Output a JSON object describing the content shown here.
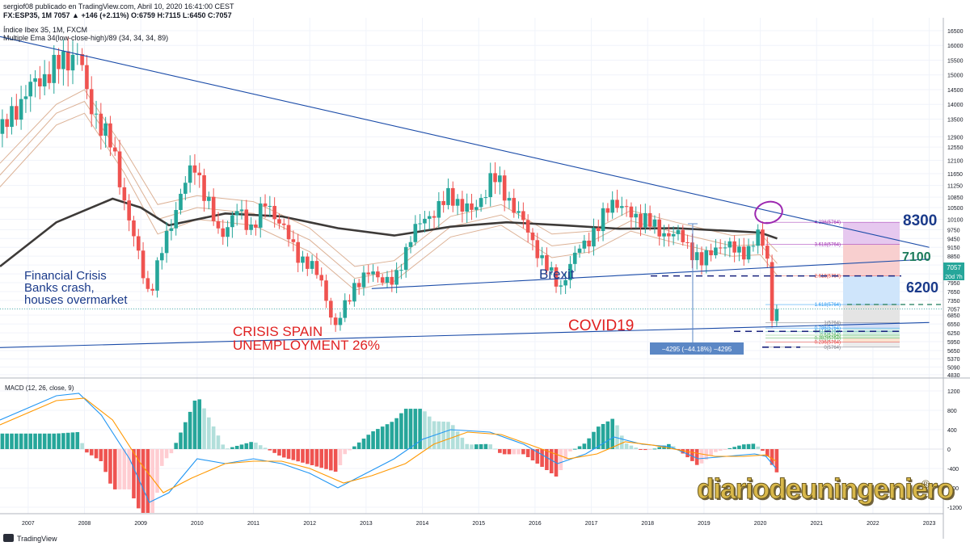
{
  "header": {
    "published": "sergiof08 publicado en TradingView.com, Abril 10, 2020 16:41:00 CEST",
    "symbol_line": "FX:ESP35, 1M 7057 ▲ +146 (+2.11%) O:6759 H:7115 L:6450 C:7057",
    "instrument": "Índice Ibex 35, 1M, FXCM",
    "indicator": "Multiple Ema 34(low-close-high)/89 (34, 34, 34, 89)"
  },
  "macd_label": "MACD (12, 26, close, 9)",
  "footer_logo": "TradingView",
  "watermark": "diariodeuningeniero",
  "watermark_mark": "®",
  "colors": {
    "up": "#26a69a",
    "down": "#ef5350",
    "trendline": "#1a4ba8",
    "ema89": "#3d3a38",
    "ema34": "#d8a88a",
    "macd_line": "#2196f3",
    "signal_line": "#ff9800",
    "navy_label": "#1a3a8a",
    "green_label": "#1a7a5a",
    "red_label": "#e02020",
    "purple_circle": "#9c27b0"
  },
  "annotations": {
    "financial_crisis": [
      "Financial Crisis",
      "Banks crash,",
      "houses overmarket"
    ],
    "crisis_spain": [
      "CRISIS SPAIN",
      "UNEMPLOYMENT 26%"
    ],
    "brexit": "Brexit",
    "covid": "COVID19",
    "level_8300": "8300",
    "level_7100": "7100",
    "level_6200": "6200",
    "measure": "−4295 (−44.18%) −4295"
  },
  "price_tags": {
    "current": "7057",
    "countdown": "20d 7h"
  },
  "fib_levels": [
    {
      "label": "4.236(5764)",
      "value": 10000
    },
    {
      "label": "3.618(5764)",
      "value": 9250
    },
    {
      "label": "2.618(5764)",
      "value": 8180
    },
    {
      "label": "1.618(5764)",
      "value": 7210
    },
    {
      "label": "1(5764)",
      "value": 6600
    },
    {
      "label": "0.786(5764)",
      "value": 6410
    },
    {
      "label": "0.618(5764)",
      "value": 6300
    },
    {
      "label": "0.5(5764)",
      "value": 6170
    },
    {
      "label": "0.382(5764)",
      "value": 6070
    },
    {
      "label": "0.236(5764)",
      "value": 5940
    },
    {
      "label": "0(5764)",
      "value": 5764
    }
  ],
  "chart_data": {
    "type": "candlestick",
    "price_axis": {
      "ticks": [
        16500,
        16000,
        15500,
        15000,
        14500,
        14000,
        13500,
        12900,
        12550,
        12100,
        11650,
        11250,
        10850,
        10500,
        10100,
        9750,
        9450,
        9150,
        8850,
        8550,
        8250,
        7950,
        7650,
        7350,
        7057,
        6850,
        6550,
        6250,
        5950,
        5650,
        5370,
        5090,
        4830
      ],
      "range": [
        4800,
        16800
      ]
    },
    "macd_axis": {
      "ticks": [
        1200,
        800,
        400,
        0,
        -400,
        -800,
        -1200
      ],
      "range": [
        -1400,
        1400
      ]
    },
    "x_axis": {
      "ticks": [
        "2007",
        "2008",
        "2009",
        "2010",
        "2011",
        "2012",
        "2013",
        "2014",
        "2015",
        "2016",
        "2017",
        "2018",
        "2019",
        "2020",
        "2021",
        "2022",
        "2023"
      ],
      "start_year": 2006.5
    },
    "anchors": [
      [
        2006.5,
        13000
      ],
      [
        2007.0,
        14500
      ],
      [
        2007.5,
        15300
      ],
      [
        2007.9,
        15800
      ],
      [
        2008.05,
        14200
      ],
      [
        2008.5,
        12500
      ],
      [
        2008.8,
        10000
      ],
      [
        2009.15,
        7500
      ],
      [
        2009.4,
        9200
      ],
      [
        2009.7,
        10900
      ],
      [
        2009.95,
        12000
      ],
      [
        2010.4,
        9500
      ],
      [
        2010.7,
        10400
      ],
      [
        2010.95,
        9800
      ],
      [
        2011.2,
        10600
      ],
      [
        2011.5,
        10000
      ],
      [
        2011.75,
        8900
      ],
      [
        2012.0,
        8600
      ],
      [
        2012.2,
        8000
      ],
      [
        2012.45,
        6400
      ],
      [
        2012.8,
        7900
      ],
      [
        2013.1,
        8300
      ],
      [
        2013.5,
        7900
      ],
      [
        2013.8,
        9600
      ],
      [
        2014.1,
        10200
      ],
      [
        2014.5,
        10900
      ],
      [
        2014.9,
        10300
      ],
      [
        2015.25,
        11600
      ],
      [
        2015.6,
        10600
      ],
      [
        2015.9,
        9600
      ],
      [
        2016.15,
        8600
      ],
      [
        2016.45,
        7800
      ],
      [
        2016.8,
        9200
      ],
      [
        2017.1,
        9700
      ],
      [
        2017.35,
        10800
      ],
      [
        2017.65,
        10300
      ],
      [
        2017.95,
        10100
      ],
      [
        2018.2,
        9700
      ],
      [
        2018.6,
        9500
      ],
      [
        2018.95,
        8600
      ],
      [
        2019.2,
        9200
      ],
      [
        2019.55,
        9100
      ],
      [
        2019.8,
        9000
      ],
      [
        2019.95,
        9550
      ],
      [
        2020.05,
        9300
      ],
      [
        2020.15,
        8700
      ],
      [
        2020.22,
        6800
      ],
      [
        2020.28,
        7057
      ]
    ],
    "ema89": [
      [
        2006.5,
        8500
      ],
      [
        2007.5,
        10000
      ],
      [
        2008.5,
        10800
      ],
      [
        2009.0,
        10500
      ],
      [
        2009.5,
        9900
      ],
      [
        2010.5,
        10300
      ],
      [
        2011.5,
        10200
      ],
      [
        2012.5,
        9800
      ],
      [
        2013.5,
        9550
      ],
      [
        2014.5,
        9850
      ],
      [
        2015.5,
        10000
      ],
      [
        2016.5,
        9900
      ],
      [
        2017.5,
        9780
      ],
      [
        2018.5,
        9800
      ],
      [
        2019.5,
        9700
      ],
      [
        2020.0,
        9650
      ],
      [
        2020.3,
        9450
      ]
    ],
    "ema34_bands": [
      [
        [
          2006.5,
          12000
        ],
        [
          2007.5,
          14000
        ],
        [
          2008.0,
          14500
        ],
        [
          2008.7,
          12500
        ],
        [
          2009.3,
          10600
        ],
        [
          2010.0,
          10900
        ],
        [
          2011.0,
          10700
        ],
        [
          2012.0,
          9800
        ],
        [
          2012.8,
          8500
        ],
        [
          2013.5,
          8700
        ],
        [
          2014.5,
          10200
        ],
        [
          2015.4,
          10600
        ],
        [
          2016.3,
          9600
        ],
        [
          2017.0,
          9700
        ],
        [
          2017.7,
          10400
        ],
        [
          2018.5,
          10000
        ],
        [
          2019.5,
          9550
        ],
        [
          2020.0,
          9600
        ],
        [
          2020.3,
          9000
        ]
      ],
      [
        [
          2006.5,
          11600
        ],
        [
          2007.5,
          13700
        ],
        [
          2008.0,
          14100
        ],
        [
          2008.7,
          12100
        ],
        [
          2009.3,
          10100
        ],
        [
          2010.0,
          10500
        ],
        [
          2011.0,
          10300
        ],
        [
          2012.0,
          9400
        ],
        [
          2012.8,
          8100
        ],
        [
          2013.5,
          8350
        ],
        [
          2014.5,
          9850
        ],
        [
          2015.4,
          10250
        ],
        [
          2016.3,
          9200
        ],
        [
          2017.0,
          9350
        ],
        [
          2017.7,
          10050
        ],
        [
          2018.5,
          9650
        ],
        [
          2019.5,
          9200
        ],
        [
          2020.0,
          9250
        ],
        [
          2020.3,
          8600
        ]
      ],
      [
        [
          2006.5,
          11200
        ],
        [
          2007.5,
          13300
        ],
        [
          2008.0,
          13700
        ],
        [
          2008.7,
          11700
        ],
        [
          2009.3,
          9600
        ],
        [
          2010.0,
          10100
        ],
        [
          2011.0,
          9900
        ],
        [
          2012.0,
          9000
        ],
        [
          2012.8,
          7700
        ],
        [
          2013.5,
          8000
        ],
        [
          2014.5,
          9500
        ],
        [
          2015.4,
          9900
        ],
        [
          2016.3,
          8800
        ],
        [
          2017.0,
          9000
        ],
        [
          2017.7,
          9700
        ],
        [
          2018.5,
          9300
        ],
        [
          2019.5,
          8850
        ],
        [
          2020.0,
          8900
        ],
        [
          2020.3,
          8200
        ]
      ]
    ],
    "macd_line": [
      [
        2006.5,
        600
      ],
      [
        2007.5,
        1100
      ],
      [
        2007.9,
        1150
      ],
      [
        2008.3,
        700
      ],
      [
        2008.8,
        -200
      ],
      [
        2009.15,
        -1100
      ],
      [
        2009.5,
        -900
      ],
      [
        2010.0,
        -200
      ],
      [
        2010.5,
        -300
      ],
      [
        2011.0,
        -200
      ],
      [
        2011.5,
        -300
      ],
      [
        2012.0,
        -500
      ],
      [
        2012.5,
        -800
      ],
      [
        2013.0,
        -500
      ],
      [
        2013.5,
        -200
      ],
      [
        2014.0,
        200
      ],
      [
        2014.5,
        400
      ],
      [
        2015.2,
        350
      ],
      [
        2015.8,
        100
      ],
      [
        2016.4,
        -300
      ],
      [
        2016.9,
        -100
      ],
      [
        2017.4,
        250
      ],
      [
        2017.9,
        100
      ],
      [
        2018.4,
        50
      ],
      [
        2018.9,
        -200
      ],
      [
        2019.4,
        -150
      ],
      [
        2019.9,
        -100
      ],
      [
        2020.1,
        -150
      ],
      [
        2020.28,
        -400
      ]
    ],
    "signal_line": [
      [
        2006.5,
        500
      ],
      [
        2007.5,
        1000
      ],
      [
        2008.0,
        1050
      ],
      [
        2008.5,
        600
      ],
      [
        2009.0,
        -300
      ],
      [
        2009.4,
        -900
      ],
      [
        2009.9,
        -600
      ],
      [
        2010.5,
        -300
      ],
      [
        2011.0,
        -250
      ],
      [
        2011.5,
        -250
      ],
      [
        2012.0,
        -400
      ],
      [
        2012.6,
        -700
      ],
      [
        2013.1,
        -550
      ],
      [
        2013.7,
        -300
      ],
      [
        2014.2,
        100
      ],
      [
        2014.8,
        350
      ],
      [
        2015.4,
        300
      ],
      [
        2016.0,
        50
      ],
      [
        2016.6,
        -200
      ],
      [
        2017.1,
        -100
      ],
      [
        2017.6,
        150
      ],
      [
        2018.1,
        80
      ],
      [
        2018.7,
        -50
      ],
      [
        2019.2,
        -150
      ],
      [
        2019.7,
        -150
      ],
      [
        2020.1,
        -120
      ],
      [
        2020.28,
        -250
      ]
    ],
    "trendlines": [
      {
        "name": "upper-resistance",
        "from": [
          2006.5,
          16300
        ],
        "to": [
          2023.0,
          9150
        ]
      },
      {
        "name": "mid-support",
        "from": [
          2013.1,
          7750
        ],
        "to": [
          2023.0,
          8750
        ]
      },
      {
        "name": "lower-support",
        "from": [
          2006.5,
          5750
        ],
        "to": [
          2023.0,
          6600
        ]
      }
    ],
    "measure": {
      "x": 2018.8,
      "from": 9950,
      "to": 5650
    }
  }
}
